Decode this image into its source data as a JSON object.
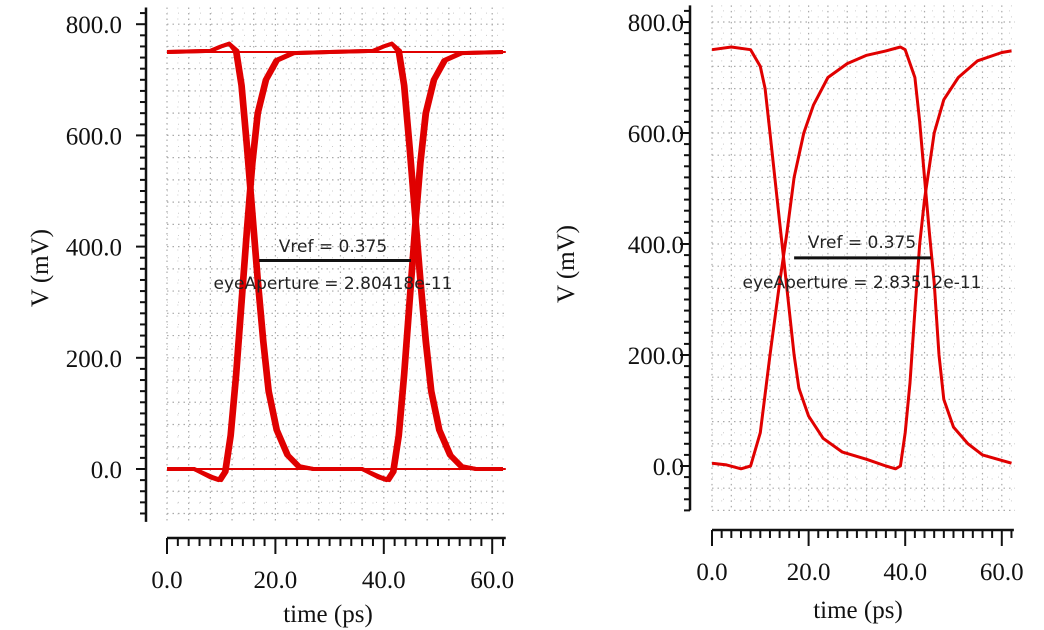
{
  "chart_data": [
    {
      "type": "line",
      "xlabel": "time (ps)",
      "ylabel": "V (mV)",
      "xlim": [
        0,
        62.5
      ],
      "ylim": [
        -95,
        830
      ],
      "xticks": [
        "0.0",
        "20.0",
        "40.0",
        "60.0"
      ],
      "yticks": [
        "0.0",
        "200.0",
        "400.0",
        "600.0",
        "800.0"
      ],
      "grid": true,
      "line_color": "#e00000",
      "annotations": {
        "vref": "Vref = 0.375",
        "aperture": "eyeAperture = 2.80418e-11"
      },
      "eye_aperture": {
        "v": 375,
        "t_start": 17,
        "t_end": 45
      },
      "series": [
        {
          "points": [
            [
              0,
              750
            ],
            [
              62.5,
              750
            ]
          ]
        },
        {
          "points": [
            [
              0,
              0
            ],
            [
              62.5,
              0
            ]
          ]
        },
        {
          "points": [
            [
              0,
              750
            ],
            [
              8,
              752
            ],
            [
              10,
              760
            ],
            [
              11.5,
              765
            ],
            [
              12.5,
              752
            ],
            [
              13.5,
              690
            ],
            [
              14.5,
              580
            ],
            [
              15.5,
              460
            ],
            [
              16.5,
              340
            ],
            [
              17.5,
              230
            ],
            [
              18.5,
              140
            ],
            [
              20,
              70
            ],
            [
              22,
              25
            ],
            [
              24,
              5
            ],
            [
              27,
              0
            ],
            [
              36,
              0
            ],
            [
              39,
              -15
            ],
            [
              40.5,
              -20
            ],
            [
              41.5,
              -5
            ],
            [
              42.5,
              60
            ],
            [
              43.5,
              170
            ],
            [
              44.5,
              300
            ],
            [
              45.5,
              430
            ],
            [
              46.5,
              550
            ],
            [
              47.5,
              640
            ],
            [
              49,
              700
            ],
            [
              51,
              735
            ],
            [
              54,
              748
            ],
            [
              62,
              750
            ]
          ]
        },
        {
          "points": [
            [
              0,
              750
            ],
            [
              8,
              752
            ],
            [
              10,
              760
            ],
            [
              11.5,
              765
            ],
            [
              13,
              752
            ],
            [
              14,
              690
            ],
            [
              15,
              580
            ],
            [
              16,
              460
            ],
            [
              17,
              340
            ],
            [
              18,
              230
            ],
            [
              19,
              140
            ],
            [
              20.5,
              70
            ],
            [
              22.5,
              25
            ],
            [
              24.5,
              5
            ],
            [
              27,
              0
            ],
            [
              36,
              0
            ],
            [
              39.5,
              -15
            ],
            [
              41,
              -20
            ],
            [
              42,
              -5
            ],
            [
              43,
              60
            ],
            [
              44,
              170
            ],
            [
              45,
              300
            ],
            [
              46,
              430
            ],
            [
              47,
              550
            ],
            [
              48,
              640
            ],
            [
              49.5,
              700
            ],
            [
              51.5,
              735
            ],
            [
              54.5,
              748
            ],
            [
              62,
              750
            ]
          ]
        },
        {
          "points": [
            [
              0,
              0
            ],
            [
              5,
              0
            ],
            [
              8,
              -15
            ],
            [
              9.5,
              -20
            ],
            [
              10.5,
              -5
            ],
            [
              11.5,
              60
            ],
            [
              12.5,
              170
            ],
            [
              13.5,
              300
            ],
            [
              14.5,
              430
            ],
            [
              15.5,
              550
            ],
            [
              16.5,
              640
            ],
            [
              18,
              700
            ],
            [
              20,
              735
            ],
            [
              23,
              748
            ],
            [
              30,
              750
            ],
            [
              38,
              752
            ],
            [
              40,
              760
            ],
            [
              41.5,
              765
            ],
            [
              42.5,
              752
            ],
            [
              43.5,
              690
            ],
            [
              44.5,
              580
            ],
            [
              45.5,
              460
            ],
            [
              46.5,
              340
            ],
            [
              47.5,
              230
            ],
            [
              48.5,
              140
            ],
            [
              50,
              70
            ],
            [
              52,
              25
            ],
            [
              54,
              5
            ],
            [
              57,
              0
            ],
            [
              62,
              0
            ]
          ]
        },
        {
          "points": [
            [
              0,
              0
            ],
            [
              5,
              0
            ],
            [
              8.5,
              -15
            ],
            [
              10,
              -20
            ],
            [
              11,
              -5
            ],
            [
              12,
              60
            ],
            [
              13,
              170
            ],
            [
              14,
              300
            ],
            [
              15,
              430
            ],
            [
              16,
              550
            ],
            [
              17,
              640
            ],
            [
              18.5,
              700
            ],
            [
              20.5,
              735
            ],
            [
              23.5,
              748
            ],
            [
              30,
              750
            ],
            [
              38,
              752
            ],
            [
              40,
              760
            ],
            [
              41.5,
              765
            ],
            [
              43,
              752
            ],
            [
              44,
              690
            ],
            [
              45,
              580
            ],
            [
              46,
              460
            ],
            [
              47,
              340
            ],
            [
              48,
              230
            ],
            [
              49,
              140
            ],
            [
              50.5,
              70
            ],
            [
              52.5,
              25
            ],
            [
              54.5,
              5
            ],
            [
              57,
              0
            ],
            [
              62,
              0
            ]
          ]
        }
      ]
    },
    {
      "type": "line",
      "xlabel": "time (ps)",
      "ylabel": "V (mV)",
      "xlim": [
        0,
        62.5
      ],
      "ylim": [
        -80,
        830
      ],
      "xticks": [
        "0.0",
        "20.0",
        "40.0",
        "60.0"
      ],
      "yticks": [
        "0.0",
        "200.0",
        "400.0",
        "600.0",
        "800.0"
      ],
      "grid": true,
      "line_color": "#e00000",
      "annotations": {
        "vref": "Vref = 0.375",
        "aperture": "eyeAperture = 2.83512e-11"
      },
      "eye_aperture": {
        "v": 375,
        "t_start": 17,
        "t_end": 45.3
      },
      "series": [
        {
          "points": [
            [
              0,
              750
            ],
            [
              4,
              755
            ],
            [
              8,
              750
            ],
            [
              10,
              720
            ],
            [
              11,
              680
            ],
            [
              12,
              600
            ],
            [
              13,
              520
            ],
            [
              14,
              440
            ],
            [
              15,
              360
            ],
            [
              16,
              280
            ],
            [
              17,
              200
            ],
            [
              18,
              140
            ],
            [
              20,
              90
            ],
            [
              23,
              50
            ],
            [
              27,
              25
            ],
            [
              32,
              12
            ],
            [
              36,
              0
            ],
            [
              38,
              -5
            ],
            [
              39,
              0
            ],
            [
              40,
              60
            ],
            [
              41,
              150
            ],
            [
              42,
              280
            ],
            [
              43,
              400
            ],
            [
              44,
              480
            ],
            [
              45,
              540
            ],
            [
              46,
              600
            ],
            [
              48,
              660
            ],
            [
              51,
              700
            ],
            [
              55,
              730
            ],
            [
              60,
              745
            ],
            [
              62,
              748
            ]
          ]
        },
        {
          "points": [
            [
              0,
              5
            ],
            [
              3,
              2
            ],
            [
              6,
              -5
            ],
            [
              8,
              0
            ],
            [
              10,
              60
            ],
            [
              12,
              200
            ],
            [
              14,
              330
            ],
            [
              15.5,
              420
            ],
            [
              17,
              520
            ],
            [
              19,
              600
            ],
            [
              21,
              650
            ],
            [
              24,
              700
            ],
            [
              28,
              725
            ],
            [
              32,
              740
            ],
            [
              36,
              748
            ],
            [
              39,
              755
            ],
            [
              40,
              750
            ],
            [
              42,
              700
            ],
            [
              43,
              620
            ],
            [
              44,
              520
            ],
            [
              45,
              420
            ],
            [
              46,
              330
            ],
            [
              47,
              200
            ],
            [
              48,
              120
            ],
            [
              50,
              70
            ],
            [
              53,
              40
            ],
            [
              56,
              20
            ],
            [
              60,
              10
            ],
            [
              62,
              5
            ]
          ]
        }
      ]
    }
  ]
}
